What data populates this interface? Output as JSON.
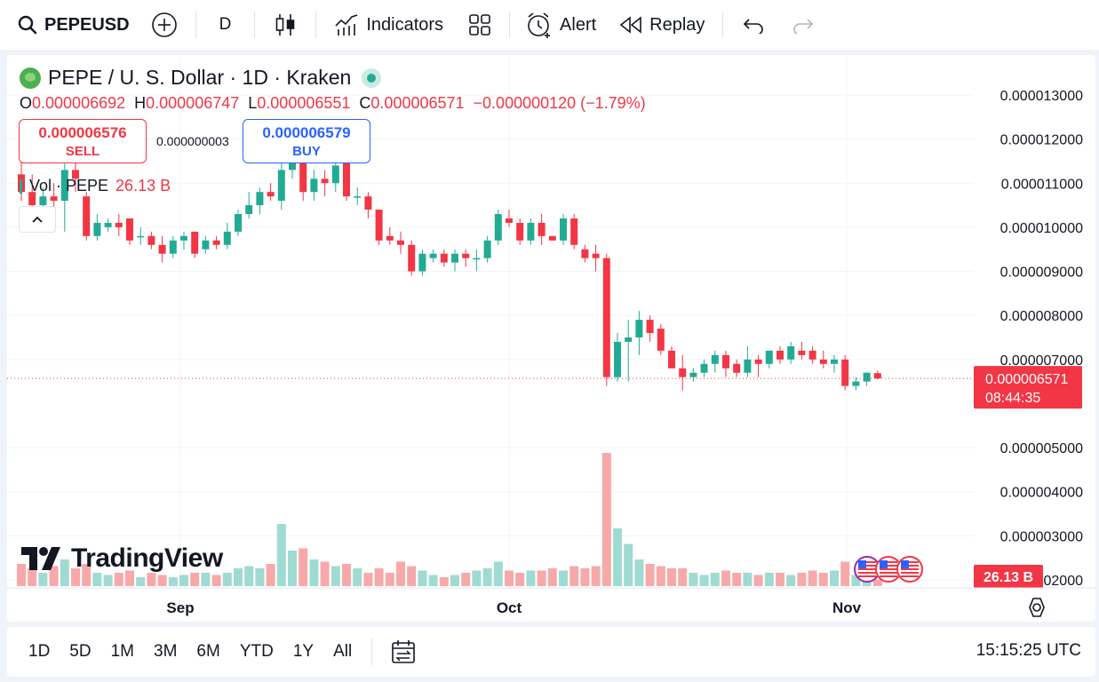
{
  "toolbar": {
    "symbol": "PEPEUSD",
    "interval": "D",
    "indicators_label": "Indicators",
    "alert_label": "Alert",
    "replay_label": "Replay"
  },
  "legend": {
    "title": "PEPE / U. S. Dollar · 1D · Kraken",
    "open_key": "O",
    "open": "0.000006692",
    "high_key": "H",
    "high": "0.000006747",
    "low_key": "L",
    "low": "0.000006551",
    "close_key": "C",
    "close": "0.000006571",
    "change": "−0.000000120 (−1.79%)",
    "sell_price": "0.000006576",
    "sell_label": "SELL",
    "spread": "0.000000003",
    "buy_price": "0.000006579",
    "buy_label": "BUY",
    "vol_label": "Vol · PEPE",
    "vol_value": "26.13 B"
  },
  "brand": "TradingView",
  "colors": {
    "up": "#22ab94",
    "down": "#f23645",
    "up_volume": "#9fdbd1",
    "down_volume": "#f7a9a9",
    "buy": "#2962ff"
  },
  "chart_data": {
    "type": "candlestick",
    "x_labels": [
      "Sep",
      "Oct",
      "Nov"
    ],
    "y_ticks": [
      "0.000013000",
      "0.000012000",
      "0.000011000",
      "0.000010000",
      "0.000009000",
      "0.000008000",
      "0.000007000",
      "0.000005000",
      "0.000004000",
      "0.000003000",
      "0.000002000"
    ],
    "ylim": [
      1.6e-06,
      1.36e-05
    ],
    "last_price_label": "0.000006571",
    "countdown": "08:44:35",
    "volume_label": "26.13 B",
    "candles": [
      [
        11.2,
        11.5,
        10.6,
        10.8,
        0.5
      ],
      [
        10.8,
        11.2,
        10.3,
        10.5,
        0.4
      ],
      [
        10.5,
        10.9,
        10.2,
        10.7,
        0.3
      ],
      [
        10.7,
        11.0,
        10.4,
        10.6,
        0.45
      ],
      [
        10.6,
        11.6,
        9.9,
        11.3,
        0.6
      ],
      [
        11.3,
        11.5,
        10.8,
        11.1,
        0.4
      ],
      [
        10.7,
        10.8,
        9.7,
        9.8,
        0.5
      ],
      [
        9.8,
        10.3,
        9.7,
        10.1,
        0.3
      ],
      [
        10.0,
        10.2,
        9.9,
        10.1,
        0.25
      ],
      [
        10.1,
        10.3,
        9.8,
        10.0,
        0.3
      ],
      [
        10.2,
        10.2,
        9.6,
        9.7,
        0.35
      ],
      [
        9.8,
        10.0,
        9.6,
        9.8,
        0.2
      ],
      [
        9.8,
        9.9,
        9.5,
        9.6,
        0.3
      ],
      [
        9.6,
        9.8,
        9.2,
        9.4,
        0.25
      ],
      [
        9.4,
        9.8,
        9.3,
        9.7,
        0.2
      ],
      [
        9.7,
        9.9,
        9.5,
        9.8,
        0.25
      ],
      [
        9.9,
        9.9,
        9.3,
        9.4,
        0.3
      ],
      [
        9.5,
        9.8,
        9.4,
        9.7,
        0.3
      ],
      [
        9.7,
        9.8,
        9.5,
        9.6,
        0.25
      ],
      [
        9.6,
        10.1,
        9.5,
        9.9,
        0.3
      ],
      [
        9.9,
        10.4,
        9.8,
        10.3,
        0.4
      ],
      [
        10.3,
        10.8,
        10.2,
        10.5,
        0.45
      ],
      [
        10.5,
        10.9,
        10.3,
        10.8,
        0.4
      ],
      [
        10.8,
        11.0,
        10.6,
        10.7,
        0.5
      ],
      [
        10.6,
        11.6,
        10.4,
        11.3,
        1.4
      ],
      [
        11.3,
        11.8,
        11.1,
        11.6,
        0.8
      ],
      [
        11.5,
        11.6,
        10.6,
        10.8,
        0.85
      ],
      [
        10.8,
        11.3,
        10.6,
        11.1,
        0.6
      ],
      [
        11.1,
        11.3,
        10.7,
        11.0,
        0.55
      ],
      [
        11.0,
        11.7,
        10.8,
        11.4,
        0.45
      ],
      [
        11.5,
        11.5,
        10.6,
        10.7,
        0.5
      ],
      [
        10.7,
        10.9,
        10.5,
        10.7,
        0.4
      ],
      [
        10.7,
        10.8,
        10.2,
        10.4,
        0.3
      ],
      [
        10.4,
        10.4,
        9.6,
        9.7,
        0.4
      ],
      [
        9.8,
        10.0,
        9.6,
        9.7,
        0.3
      ],
      [
        9.7,
        9.9,
        9.4,
        9.6,
        0.55
      ],
      [
        9.6,
        9.7,
        8.9,
        9.0,
        0.45
      ],
      [
        9.0,
        9.5,
        8.9,
        9.4,
        0.35
      ],
      [
        9.3,
        9.5,
        9.2,
        9.4,
        0.25
      ],
      [
        9.4,
        9.5,
        9.1,
        9.2,
        0.2
      ],
      [
        9.2,
        9.5,
        9.0,
        9.4,
        0.25
      ],
      [
        9.4,
        9.5,
        9.1,
        9.3,
        0.3
      ],
      [
        9.3,
        9.5,
        9.0,
        9.3,
        0.35
      ],
      [
        9.3,
        9.8,
        9.2,
        9.7,
        0.4
      ],
      [
        9.7,
        10.4,
        9.6,
        10.3,
        0.55
      ],
      [
        10.2,
        10.4,
        10.0,
        10.1,
        0.35
      ],
      [
        10.1,
        10.2,
        9.6,
        9.7,
        0.3
      ],
      [
        9.7,
        10.2,
        9.6,
        10.1,
        0.35
      ],
      [
        10.1,
        10.3,
        9.6,
        9.8,
        0.35
      ],
      [
        9.8,
        9.8,
        9.7,
        9.7,
        0.4
      ],
      [
        9.7,
        10.3,
        9.6,
        10.2,
        0.35
      ],
      [
        10.2,
        10.3,
        9.5,
        9.6,
        0.45
      ],
      [
        9.5,
        9.6,
        9.2,
        9.3,
        0.4
      ],
      [
        9.4,
        9.6,
        9.0,
        9.3,
        0.45
      ],
      [
        9.3,
        9.4,
        6.4,
        6.6,
        3.0
      ],
      [
        6.6,
        7.6,
        6.5,
        7.4,
        1.3
      ],
      [
        7.4,
        7.9,
        6.5,
        7.5,
        0.95
      ],
      [
        7.5,
        8.1,
        7.1,
        7.9,
        0.6
      ],
      [
        7.9,
        8.0,
        7.4,
        7.6,
        0.5
      ],
      [
        7.7,
        7.8,
        7.1,
        7.2,
        0.45
      ],
      [
        7.2,
        7.3,
        6.8,
        6.8,
        0.4
      ],
      [
        6.8,
        7.1,
        6.3,
        6.6,
        0.4
      ],
      [
        6.6,
        6.8,
        6.5,
        6.7,
        0.3
      ],
      [
        6.7,
        7.0,
        6.6,
        6.9,
        0.25
      ],
      [
        6.9,
        7.2,
        6.7,
        7.1,
        0.3
      ],
      [
        7.1,
        7.2,
        6.6,
        6.8,
        0.35
      ],
      [
        6.9,
        7.0,
        6.6,
        6.7,
        0.3
      ],
      [
        6.7,
        7.3,
        6.6,
        7.0,
        0.3
      ],
      [
        7.0,
        7.1,
        6.6,
        6.9,
        0.25
      ],
      [
        6.9,
        7.2,
        6.8,
        7.2,
        0.3
      ],
      [
        7.2,
        7.3,
        6.9,
        7.0,
        0.3
      ],
      [
        7.0,
        7.4,
        6.9,
        7.3,
        0.25
      ],
      [
        7.2,
        7.4,
        7.0,
        7.1,
        0.3
      ],
      [
        7.2,
        7.3,
        6.9,
        7.0,
        0.35
      ],
      [
        7.0,
        7.2,
        6.8,
        6.9,
        0.3
      ],
      [
        6.9,
        7.1,
        6.7,
        7.0,
        0.35
      ],
      [
        7.0,
        7.1,
        6.3,
        6.4,
        0.55
      ],
      [
        6.4,
        6.6,
        6.3,
        6.5,
        0.25
      ],
      [
        6.5,
        6.7,
        6.4,
        6.7,
        0.2
      ],
      [
        6.69,
        6.75,
        6.55,
        6.57,
        0.15
      ]
    ]
  },
  "bottom": {
    "ranges": [
      "1D",
      "5D",
      "1M",
      "3M",
      "6M",
      "YTD",
      "1Y",
      "All"
    ],
    "clock": "15:15:25 UTC"
  }
}
